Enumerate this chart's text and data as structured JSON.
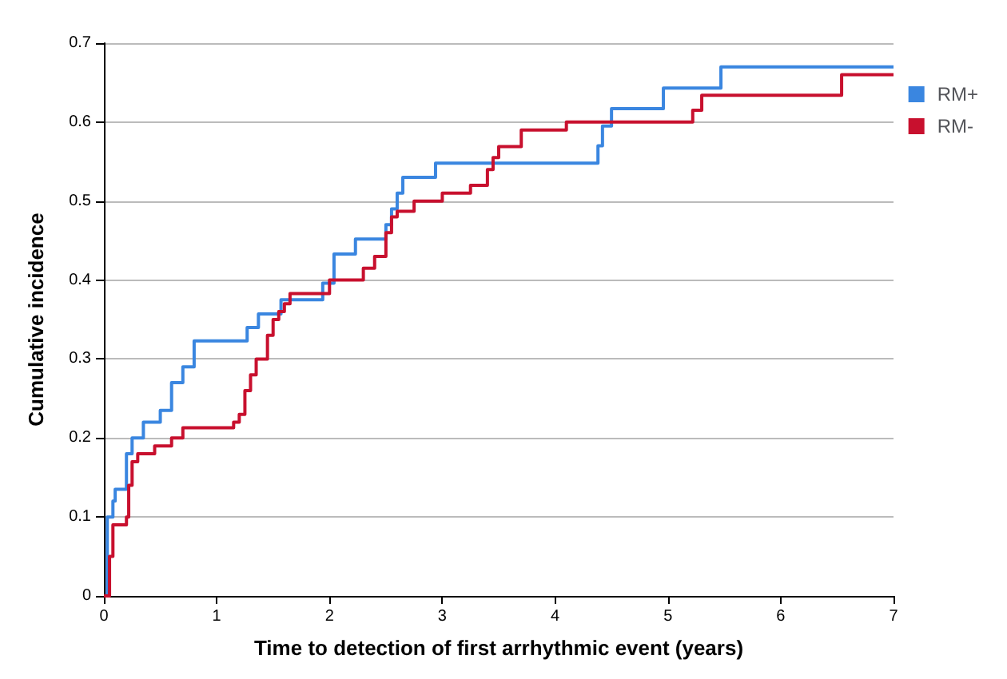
{
  "chart_data": {
    "type": "step",
    "xlabel": "Time to detection of first arrhythmic event (years)",
    "ylabel": "Cumulative incidence",
    "xlim": [
      0,
      7
    ],
    "xticks": [
      0,
      1,
      2,
      3,
      4,
      5,
      6,
      7
    ],
    "ylim": [
      0,
      0.7
    ],
    "yticks": [
      0,
      0.1,
      0.2,
      0.3,
      0.4,
      0.5,
      0.6,
      0.7
    ],
    "grid": "y",
    "legend": "top right",
    "marker": "none",
    "line_style": "solid",
    "series": [
      {
        "name": "RM+",
        "color": "#3a86e0",
        "x": [
          0,
          0.03,
          0.08,
          0.1,
          0.2,
          0.25,
          0.35,
          0.5,
          0.6,
          0.7,
          0.8,
          1.27,
          1.37,
          1.57,
          1.94,
          2.04,
          2.23,
          2.5,
          2.55,
          2.6,
          2.65,
          2.94,
          4.38,
          4.42,
          4.5,
          4.96,
          5.47,
          7
        ],
        "values": [
          0,
          0.1,
          0.12,
          0.135,
          0.18,
          0.2,
          0.22,
          0.235,
          0.27,
          0.29,
          0.323,
          0.34,
          0.357,
          0.375,
          0.396,
          0.433,
          0.452,
          0.47,
          0.49,
          0.51,
          0.53,
          0.548,
          0.57,
          0.595,
          0.617,
          0.643,
          0.67,
          0.67
        ]
      },
      {
        "name": "RM-",
        "color": "#c8102e",
        "x": [
          0,
          0.05,
          0.08,
          0.2,
          0.22,
          0.25,
          0.3,
          0.45,
          0.6,
          0.7,
          1.15,
          1.2,
          1.25,
          1.3,
          1.35,
          1.45,
          1.5,
          1.55,
          1.6,
          1.65,
          2.0,
          2.3,
          2.4,
          2.5,
          2.55,
          2.6,
          2.75,
          3.0,
          3.25,
          3.4,
          3.45,
          3.5,
          3.7,
          4.1,
          5.22,
          5.3,
          6.54,
          7
        ],
        "values": [
          0,
          0.05,
          0.09,
          0.1,
          0.14,
          0.17,
          0.18,
          0.19,
          0.2,
          0.213,
          0.22,
          0.23,
          0.26,
          0.28,
          0.3,
          0.33,
          0.35,
          0.36,
          0.37,
          0.383,
          0.4,
          0.415,
          0.43,
          0.46,
          0.48,
          0.487,
          0.5,
          0.51,
          0.52,
          0.54,
          0.555,
          0.569,
          0.59,
          0.6,
          0.615,
          0.634,
          0.66,
          0.66
        ]
      }
    ]
  }
}
